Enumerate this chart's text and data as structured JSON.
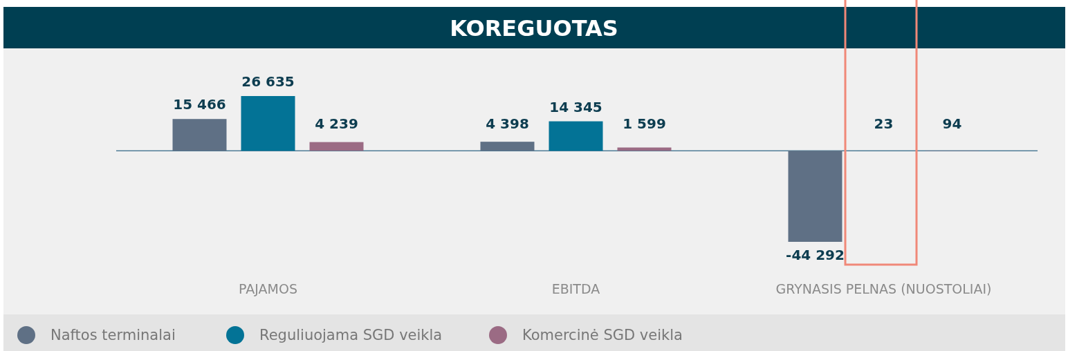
{
  "chart_data": {
    "type": "bar",
    "title": "KOREGUOTAS",
    "categories": [
      "PAJAMOS",
      "EBITDA",
      "GRYNASIS PELNAS (NUOSTOLIAI)"
    ],
    "series": [
      {
        "name": "Naftos terminalai",
        "color": "#5f7085",
        "values": [
          15466,
          4398,
          -44292
        ],
        "value_labels": [
          "15 466",
          "4 398",
          "-44 292"
        ]
      },
      {
        "name": "Reguliuojama SGD veikla",
        "color": "#037396",
        "values": [
          26635,
          14345,
          23
        ],
        "value_labels": [
          "26 635",
          "14 345",
          "23"
        ]
      },
      {
        "name": "Komercinė SGD veikla",
        "color": "#9b6b84",
        "values": [
          4239,
          1599,
          94
        ],
        "value_labels": [
          "4 239",
          "1 599",
          "94"
        ]
      }
    ],
    "ref_lines": [
      {
        "axis": "y",
        "value": 0,
        "color": "#4f7c96"
      }
    ],
    "legend": "bottom"
  }
}
